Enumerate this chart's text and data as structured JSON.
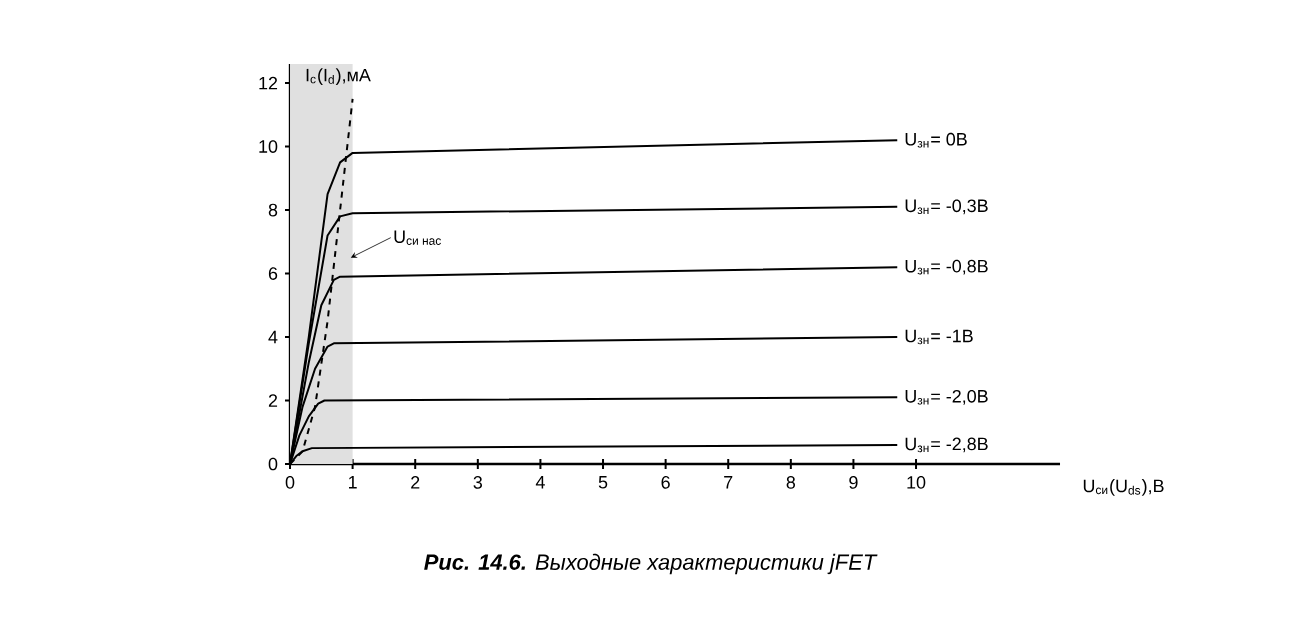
{
  "chart_data": {
    "type": "line",
    "title": "**Рис. 14.6.** Выходные характеристики jFET",
    "xlabel": "U$_{си}$(U$_{ds}$),В",
    "ylabel": "I$_{с}$(I$_{d}$),мА",
    "xlim": [
      0,
      12.3
    ],
    "ylim": [
      0,
      12.6
    ],
    "xticks": [
      0,
      1,
      2,
      3,
      4,
      5,
      6,
      7,
      8,
      9,
      10
    ],
    "yticks": [
      0,
      2,
      4,
      6,
      8,
      10,
      12
    ],
    "grid": false,
    "marker": "none",
    "line_style": "solid",
    "series": [
      {
        "name": "U$_{зн}$= 0В",
        "color": "#000000",
        "x": [
          0,
          0.3,
          0.6,
          0.8,
          1.0,
          9.7
        ],
        "values": [
          0,
          4,
          8.5,
          9.5,
          9.8,
          10.2
        ]
      },
      {
        "name": "U$_{зн}$= -0,3В",
        "color": "#000000",
        "x": [
          0,
          0.3,
          0.6,
          0.8,
          1.0,
          9.7
        ],
        "values": [
          0,
          3.8,
          7.2,
          7.8,
          7.9,
          8.1
        ]
      },
      {
        "name": "U$_{зн}$= -0,8В",
        "color": "#000000",
        "x": [
          0,
          0.3,
          0.5,
          0.7,
          0.8,
          9.7
        ],
        "values": [
          0,
          3.2,
          5.0,
          5.8,
          5.9,
          6.2
        ]
      },
      {
        "name": "U$_{зн}$= -1В",
        "color": "#000000",
        "x": [
          0,
          0.2,
          0.4,
          0.6,
          0.7,
          9.7
        ],
        "values": [
          0,
          1.8,
          3.0,
          3.7,
          3.8,
          4.0
        ]
      },
      {
        "name": "U$_{зн}$= -2,0В",
        "color": "#000000",
        "x": [
          0,
          0.15,
          0.3,
          0.45,
          0.55,
          9.7
        ],
        "values": [
          0,
          0.9,
          1.5,
          1.9,
          2.0,
          2.1
        ]
      },
      {
        "name": "U$_{зн}$= -2,8В",
        "color": "#000000",
        "x": [
          0,
          0.1,
          0.2,
          0.35,
          9.7
        ],
        "values": [
          0,
          0.25,
          0.4,
          0.5,
          0.6
        ]
      },
      {
        "color": "#000000",
        "line_style": "dashed",
        "x": [
          0,
          0.2,
          0.4,
          0.6,
          0.8,
          1.0
        ],
        "values": [
          0,
          0.4,
          1.8,
          4.5,
          8.0,
          11.5
        ]
      }
    ],
    "bands": [
      {
        "axis": "x",
        "from": 0,
        "to": 1,
        "color": "#e0e0e0"
      }
    ],
    "annotations": [
      {
        "text": "\\text{U}_{\\text{си нас}}",
        "x": 0.97,
        "y": 6.5
      }
    ]
  }
}
